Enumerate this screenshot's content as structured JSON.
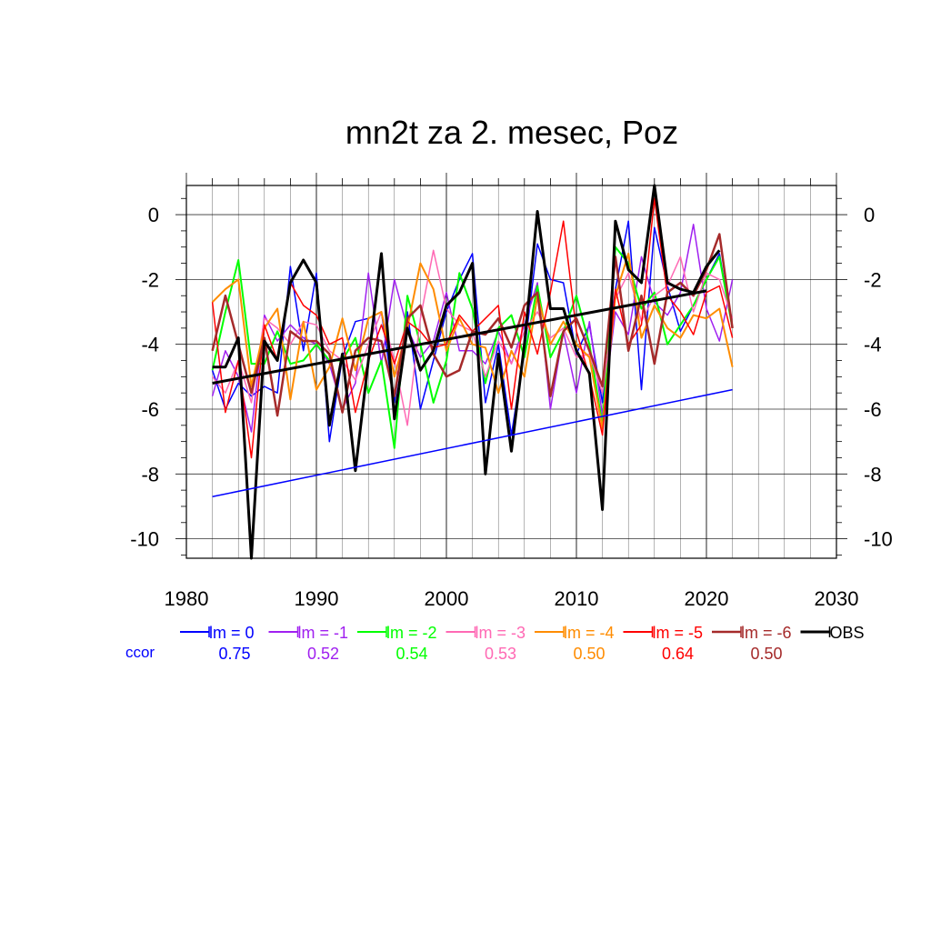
{
  "chart_data": {
    "type": "line",
    "title": "mn2t za 2. mesec, Poz",
    "xlabel": "",
    "ylabel": "",
    "xlim": [
      1980,
      2030
    ],
    "ylim": [
      -10.6,
      0.9
    ],
    "xticks": [
      1980,
      1990,
      2000,
      2010,
      2020,
      2030
    ],
    "yticks": [
      0,
      -2,
      -4,
      -6,
      -8,
      -10
    ],
    "grid": true,
    "legend_position": "bottom",
    "ccor_label": "ccor",
    "x": [
      1982,
      1983,
      1984,
      1985,
      1986,
      1987,
      1988,
      1989,
      1990,
      1991,
      1992,
      1993,
      1994,
      1995,
      1996,
      1997,
      1998,
      1999,
      2000,
      2001,
      2002,
      2003,
      2004,
      2005,
      2006,
      2007,
      2008,
      2009,
      2010,
      2011,
      2012,
      2013,
      2014,
      2015,
      2016,
      2017,
      2018,
      2019,
      2020,
      2021,
      2022
    ],
    "series": [
      {
        "name": "lm = 0",
        "ccor": "0.75",
        "color": "#0000ff",
        "width": 1.5,
        "values": [
          -4.8,
          -6.0,
          -5.2,
          -5.6,
          -5.3,
          -5.5,
          -1.6,
          -4.2,
          -1.8,
          -7.0,
          -4.4,
          -3.3,
          -3.2,
          -3.0,
          -5.8,
          -3.0,
          -6.0,
          -4.5,
          -3.0,
          -2.0,
          -1.2,
          -5.8,
          -4.0,
          -6.8,
          -4.2,
          -0.9,
          -2.0,
          -2.1,
          -4.3,
          -3.4,
          -5.8,
          -2.3,
          -0.2,
          -5.4,
          -0.4,
          -2.2,
          -3.6,
          -2.8,
          -2.0,
          -1.2,
          -3.5
        ]
      },
      {
        "name": "lm = -1",
        "ccor": "0.52",
        "color": "#a020f0",
        "width": 1.5,
        "values": [
          -5.6,
          -4.2,
          -5.0,
          -6.7,
          -3.1,
          -3.9,
          -3.4,
          -3.8,
          -4.0,
          -4.6,
          -6.0,
          -5.2,
          -1.8,
          -4.6,
          -2.0,
          -3.5,
          -4.4,
          -3.9,
          -2.4,
          -4.2,
          -4.2,
          -4.6,
          -3.6,
          -4.6,
          -3.4,
          -2.1,
          -6.0,
          -3.6,
          -5.5,
          -3.3,
          -6.2,
          -3.0,
          -3.7,
          -1.3,
          -2.7,
          -3.1,
          -2.4,
          -0.3,
          -2.9,
          -3.9,
          -2.0
        ]
      },
      {
        "name": "lm = -2",
        "ccor": "0.54",
        "color": "#00ff00",
        "width": 2,
        "values": [
          -4.8,
          -3.0,
          -1.4,
          -4.6,
          -4.6,
          -3.6,
          -4.6,
          -4.5,
          -4.0,
          -4.5,
          -4.5,
          -3.8,
          -5.5,
          -4.5,
          -7.2,
          -2.5,
          -4.0,
          -5.8,
          -4.5,
          -1.8,
          -2.9,
          -5.2,
          -3.5,
          -3.1,
          -4.4,
          -2.2,
          -4.4,
          -3.6,
          -2.5,
          -4.0,
          -6.5,
          -1.0,
          -1.5,
          -2.9,
          -2.4,
          -4.0,
          -3.4,
          -2.8,
          -2.0,
          -1.3,
          -3.5
        ]
      },
      {
        "name": "lm = -3",
        "ccor": "0.53",
        "color": "#ff69b4",
        "width": 1.5,
        "values": [
          -5.0,
          -5.5,
          -4.5,
          -5.8,
          -3.2,
          -3.5,
          -4.0,
          -3.3,
          -3.4,
          -4.2,
          -4.5,
          -5.1,
          -4.0,
          -3.0,
          -4.5,
          -6.5,
          -3.2,
          -1.1,
          -2.9,
          -3.4,
          -3.6,
          -5.0,
          -3.9,
          -4.6,
          -3.6,
          -3.0,
          -3.8,
          -3.5,
          -4.4,
          -4.3,
          -5.5,
          -2.6,
          -1.8,
          -3.3,
          -2.5,
          -2.2,
          -1.3,
          -3.0,
          -1.8,
          -2.0,
          -3.2
        ]
      },
      {
        "name": "lm = -4",
        "ccor": "0.50",
        "color": "#ff8c00",
        "width": 2,
        "values": [
          -2.7,
          -2.3,
          -2.0,
          -5.3,
          -3.5,
          -2.9,
          -5.7,
          -3.3,
          -5.4,
          -4.7,
          -3.2,
          -4.8,
          -3.2,
          -3.0,
          -5.0,
          -3.5,
          -1.5,
          -2.3,
          -4.2,
          -3.2,
          -4.0,
          -4.1,
          -5.5,
          -4.2,
          -5.0,
          -2.5,
          -4.0,
          -3.3,
          -4.0,
          -4.4,
          -6.6,
          -2.5,
          -1.2,
          -3.8,
          -2.8,
          -3.5,
          -3.8,
          -3.1,
          -3.2,
          -2.9,
          -4.7
        ]
      },
      {
        "name": "lm = -5",
        "ccor": "0.64",
        "color": "#ff0000",
        "width": 1.5,
        "values": [
          -2.7,
          -6.1,
          -4.5,
          -7.5,
          -3.4,
          -4.5,
          -2.1,
          -2.8,
          -3.1,
          -4.0,
          -3.8,
          -6.1,
          -4.5,
          -3.4,
          -4.6,
          -3.3,
          -3.6,
          -4.1,
          -4.0,
          -3.1,
          -3.6,
          -3.2,
          -2.8,
          -6.0,
          -3.0,
          -4.3,
          -2.4,
          -0.2,
          -3.6,
          -5.0,
          -6.8,
          -2.3,
          -4.0,
          -3.4,
          0.5,
          -2.5,
          -3.0,
          -3.7,
          -2.4,
          -2.2,
          -3.8
        ]
      },
      {
        "name": "lm = -6",
        "ccor": "0.50",
        "color": "#a52a2a",
        "width": 2.5,
        "values": [
          -4.2,
          -2.5,
          -4.0,
          -5.5,
          -3.8,
          -6.2,
          -3.6,
          -3.9,
          -3.9,
          -4.3,
          -6.1,
          -4.2,
          -3.8,
          -3.9,
          -5.6,
          -3.2,
          -2.8,
          -4.3,
          -5.0,
          -4.8,
          -3.6,
          -3.7,
          -3.2,
          -4.1,
          -2.8,
          -2.4,
          -5.6,
          -3.6,
          -3.2,
          -4.2,
          -5.3,
          -1.3,
          -4.2,
          -2.5,
          -4.6,
          -2.4,
          -2.1,
          -2.5,
          -1.7,
          -0.6,
          -3.5
        ]
      },
      {
        "name": "OBS",
        "ccor": "",
        "color": "#000000",
        "width": 3,
        "values": [
          -4.7,
          -4.7,
          -3.8,
          -10.6,
          -3.9,
          -4.5,
          -2.1,
          -1.4,
          -2.1,
          -6.5,
          -4.3,
          -7.9,
          -4.5,
          -1.2,
          -6.3,
          -3.5,
          -4.8,
          -4.2,
          -2.8,
          -2.4,
          -1.5,
          -8.0,
          -4.3,
          -7.3,
          -4.0,
          0.1,
          -2.9,
          -2.9,
          -4.2,
          -4.9,
          -9.1,
          -0.2,
          -1.7,
          -2.1,
          0.9,
          -2.1,
          -2.3,
          -2.4,
          -1.6,
          -1.1,
          null
        ]
      }
    ],
    "trend_lines": [
      {
        "name": "OBS trend",
        "color": "#000000",
        "width": 3,
        "x": [
          1982,
          2020
        ],
        "y": [
          -5.2,
          -2.35
        ]
      },
      {
        "name": "lm = 0 trend",
        "color": "#0000ff",
        "width": 1.5,
        "x": [
          1982,
          2022
        ],
        "y": [
          -8.7,
          -5.4
        ]
      }
    ]
  }
}
